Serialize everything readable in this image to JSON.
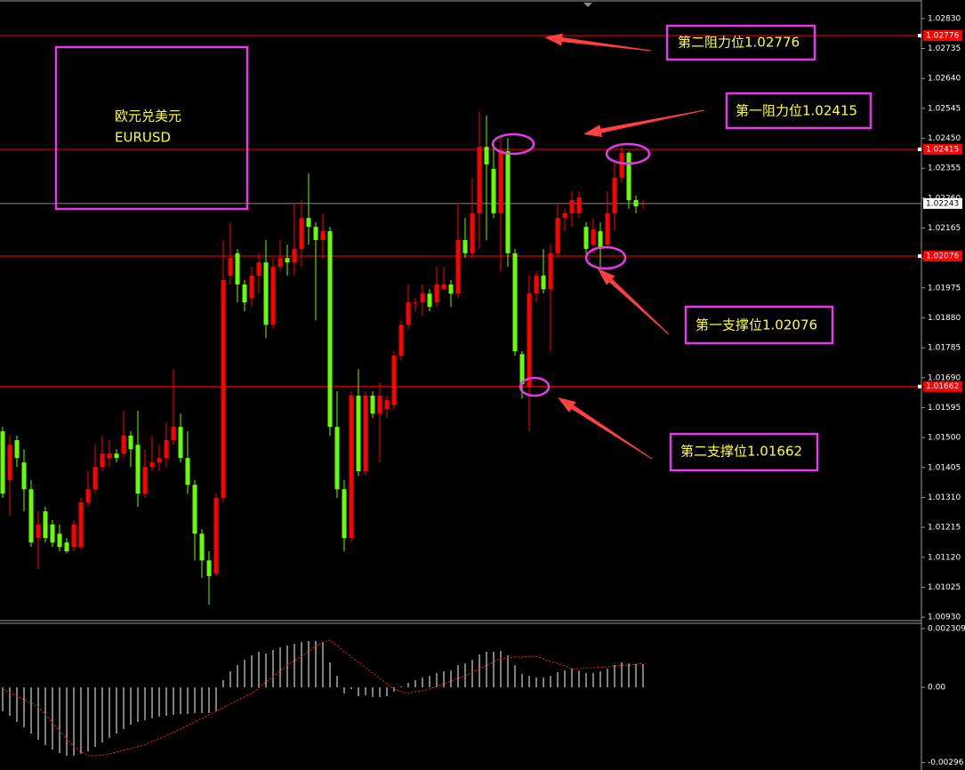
{
  "chart_data": [
    {
      "type": "candlestick",
      "up_color": "#ff0000",
      "down_color": "#66ff00",
      "ylim": [
        1.00919,
        1.02889
      ],
      "yticks": [
        {
          "value": 1.0283,
          "label": "1.02830"
        },
        1.02735,
        {
          "value": 1.0264,
          "label": "1.02640"
        },
        1.02545,
        {
          "value": 1.0245,
          "label": "1.02450"
        },
        1.02355,
        {
          "value": 1.0226,
          "label": "1.02260"
        },
        1.02165,
        {
          "value": 1.0207,
          "label": "1.02070"
        },
        1.01975,
        {
          "value": 1.0188,
          "label": "1.01880"
        },
        1.01785,
        {
          "value": 1.0169,
          "label": "1.01690"
        },
        1.01595,
        {
          "value": 1.015,
          "label": "1.01500"
        },
        1.01405,
        {
          "value": 1.0131,
          "label": "1.01310"
        },
        1.01215,
        {
          "value": 1.0112,
          "label": "1.01120"
        },
        1.01025,
        {
          "value": 1.0093,
          "label": "1.00930"
        }
      ],
      "hlines": [
        1.02776,
        1.02415,
        1.02076,
        1.01662
      ],
      "hline_color": "#ff0000",
      "current_price": 1.02243,
      "open": [
        1.0152,
        1.01365,
        1.01492,
        1.01421,
        1.01336,
        1.01181,
        1.01266,
        1.01224,
        1.01195,
        1.01167,
        1.01153,
        1.01153,
        1.01294,
        1.01336,
        1.01407,
        1.01435,
        1.01449,
        1.01449,
        1.01506,
        1.01477,
        1.01322,
        1.01407,
        1.01421,
        1.01435,
        1.01492,
        1.01534,
        1.01435,
        1.0135,
        1.01195,
        1.0111,
        1.01068,
        1.01308,
        1.02014,
        1.02085,
        1.01986,
        1.01943,
        1.02014,
        1.02056,
        1.01858,
        1.02042,
        1.0207,
        1.02056,
        1.02099,
        1.02197,
        1.02169,
        1.02127,
        1.02155,
        1.01534,
        1.01336,
        1.01181,
        1.01633,
        1.01393,
        1.01633,
        1.01576,
        1.0159,
        1.01604,
        1.0176,
        1.01858,
        1.01929,
        1.01929,
        1.01957,
        1.01929,
        1.01971,
        1.01986,
        1.01957,
        1.02127,
        1.02085,
        1.02212,
        1.02423,
        1.02353,
        1.02212,
        1.02409,
        1.02085,
        1.01765,
        1.01661,
        1.01957,
        1.02014,
        1.01971,
        1.02085,
        1.02197,
        1.02212,
        1.02212,
        1.02169,
        1.02113,
        1.02155,
        1.02113,
        1.02212,
        1.02325,
        1.02404,
        1.02254,
        1.02243
      ],
      "high": [
        1.01534,
        1.01506,
        1.01506,
        1.01463,
        1.01365,
        1.01266,
        1.0128,
        1.01238,
        1.01224,
        1.01181,
        1.01238,
        1.01308,
        1.01393,
        1.01477,
        1.01506,
        1.01492,
        1.01463,
        1.01585,
        1.0152,
        1.01585,
        1.01463,
        1.01506,
        1.01477,
        1.01548,
        1.01717,
        1.01576,
        1.0152,
        1.01365,
        1.01209,
        1.01139,
        1.01322,
        1.02127,
        1.02183,
        1.02099,
        1.02,
        1.02042,
        1.02085,
        1.02127,
        1.0207,
        1.02127,
        1.02113,
        1.0224,
        1.02254,
        1.02339,
        1.02183,
        1.02212,
        1.02169,
        1.01647,
        1.01365,
        1.01647,
        1.01717,
        1.01647,
        1.01647,
        1.01675,
        1.01633,
        1.01774,
        1.01872,
        1.01986,
        1.01943,
        1.01986,
        1.01971,
        1.02042,
        1.02042,
        1.02,
        1.0224,
        1.02197,
        1.02325,
        1.02536,
        1.02522,
        1.02437,
        1.02451,
        1.02451,
        1.02099,
        1.01774,
        1.02014,
        1.02028,
        1.02099,
        1.02113,
        1.0224,
        1.02226,
        1.02282,
        1.02282,
        1.02183,
        1.02197,
        1.02183,
        1.02282,
        1.02381,
        1.02423,
        1.02409,
        1.02268,
        1.02254
      ],
      "low": [
        1.01308,
        1.01252,
        1.01407,
        1.01266,
        1.01153,
        1.01082,
        1.01167,
        1.01153,
        1.01139,
        1.01133,
        1.01139,
        1.01144,
        1.0128,
        1.01322,
        1.01393,
        1.01407,
        1.01421,
        1.01435,
        1.01407,
        1.0128,
        1.01308,
        1.01393,
        1.01393,
        1.01407,
        1.01477,
        1.01421,
        1.01322,
        1.0111,
        1.01055,
        1.00969,
        1.0106,
        1.01294,
        1.01986,
        1.01929,
        1.01901,
        1.01915,
        1.01957,
        1.01816,
        1.01844,
        1.02028,
        1.02014,
        1.02014,
        1.02042,
        1.02113,
        1.01872,
        1.0207,
        1.01506,
        1.01308,
        1.01139,
        1.01167,
        1.01379,
        1.01379,
        1.01562,
        1.01421,
        1.01562,
        1.0159,
        1.01746,
        1.01844,
        1.01901,
        1.01887,
        1.01901,
        1.01915,
        1.01971,
        1.01915,
        1.01943,
        1.0207,
        1.0207,
        1.02099,
        1.02127,
        1.02197,
        1.02028,
        1.02042,
        1.0176,
        1.01624,
        1.0152,
        1.01929,
        1.01957,
        1.01774,
        1.0207,
        1.02155,
        1.02169,
        1.02197,
        1.02085,
        1.02085,
        1.02042,
        1.02099,
        1.02155,
        1.0231,
        1.02226,
        1.02212,
        1.02226
      ],
      "close": [
        1.01322,
        1.01477,
        1.01435,
        1.01336,
        1.01167,
        1.01224,
        1.01181,
        1.01167,
        1.01153,
        1.01139,
        1.01224,
        1.01294,
        1.01336,
        1.01407,
        1.01449,
        1.01449,
        1.01435,
        1.01506,
        1.01463,
        1.01322,
        1.01407,
        1.01421,
        1.01435,
        1.01492,
        1.01534,
        1.01435,
        1.0135,
        1.01195,
        1.0111,
        1.0106,
        1.01308,
        1.02,
        1.0207,
        1.01986,
        1.01929,
        1.02014,
        1.02056,
        1.01858,
        1.02042,
        1.0207,
        1.02056,
        1.02099,
        1.02197,
        1.02169,
        1.02127,
        1.02155,
        1.01534,
        1.01336,
        1.01181,
        1.01633,
        1.01393,
        1.01633,
        1.01576,
        1.01633,
        1.01619,
        1.0176,
        1.01858,
        1.01929,
        1.01929,
        1.01957,
        1.01915,
        1.01986,
        1.01986,
        1.01957,
        1.02127,
        1.02085,
        1.02212,
        1.02423,
        1.02367,
        1.02212,
        1.02409,
        1.02085,
        1.01774,
        1.01669,
        1.01957,
        1.02014,
        1.01971,
        1.02085,
        1.02197,
        1.02212,
        1.02254,
        1.02262,
        1.02099,
        1.02161,
        1.02099,
        1.02212,
        1.02325,
        1.02404,
        1.02254,
        1.02234,
        1.02243
      ],
      "annotations": [
        "欧元兑美元",
        "EURUSD",
        "第二阻力位1.02776",
        "第一阻力位1.02415",
        "第一支撑位1.02076",
        "第二支撑位1.01662"
      ]
    },
    {
      "type": "macd",
      "ylim": [
        -0.003254,
        0.002554
      ],
      "yticks": [
        0.002309,
        {
          "value": 0,
          "label": "0.00"
        },
        -0.00296
      ],
      "histogram": {
        "color": "#ffffff",
        "values": [
          -0.00094,
          -0.00112,
          -0.00136,
          -0.00157,
          -0.00182,
          -0.00206,
          -0.00227,
          -0.00245,
          -0.00259,
          -0.00269,
          -0.00269,
          -0.00262,
          -0.00252,
          -0.00234,
          -0.00217,
          -0.00199,
          -0.00182,
          -0.00164,
          -0.00147,
          -0.00136,
          -0.00129,
          -0.00122,
          -0.00115,
          -0.00112,
          -0.00108,
          -0.00105,
          -0.00105,
          -0.00101,
          -0.00101,
          -0.00101,
          -0.00094,
          0.00028,
          0.00063,
          0.00087,
          0.00108,
          0.00126,
          0.0014,
          0.00133,
          0.00147,
          0.00157,
          0.00164,
          0.00171,
          0.00178,
          0.00182,
          0.00182,
          0.00178,
          0.00098,
          0.00045,
          -0.00024,
          -7e-05,
          -0.00035,
          -0.00031,
          -0.00038,
          -0.00038,
          -0.00035,
          -0.00017,
          3e-05,
          0.00017,
          0.00028,
          0.00038,
          0.00045,
          0.00056,
          0.00063,
          0.00066,
          0.00087,
          0.00094,
          0.00108,
          0.00129,
          0.0014,
          0.0014,
          0.00143,
          0.00126,
          0.00087,
          0.00052,
          0.00045,
          0.00038,
          0.00038,
          0.00045,
          0.00059,
          0.00066,
          0.00073,
          0.00066,
          0.00056,
          0.00056,
          0.00063,
          0.00073,
          0.00087,
          0.00098,
          0.00094,
          0.00091,
          0.00091
        ]
      },
      "signal": {
        "color": "#ff2020",
        "values": [
          -7e-05,
          -0.00021,
          -0.00035,
          -0.00049,
          -0.00063,
          -0.00077,
          -0.00108,
          -0.0014,
          -0.00171,
          -0.00203,
          -0.00234,
          -0.00252,
          -0.00269,
          -0.00269,
          -0.00266,
          -0.00262,
          -0.00255,
          -0.00248,
          -0.00241,
          -0.00234,
          -0.00227,
          -0.00213,
          -0.00203,
          -0.00189,
          -0.00178,
          -0.00164,
          -0.0015,
          -0.00136,
          -0.00122,
          -0.00108,
          -0.00094,
          -0.0008,
          -0.00066,
          -0.00052,
          -0.00038,
          -0.00024,
          -3e-05,
          0.00021,
          0.00042,
          0.00066,
          0.00087,
          0.00105,
          0.00122,
          0.00143,
          0.00161,
          0.00178,
          0.00185,
          0.00164,
          0.0014,
          0.00119,
          0.00098,
          0.00077,
          0.00056,
          0.00035,
          0.00014,
          -7e-05,
          -0.00017,
          -0.00024,
          -0.00017,
          -0.00014,
          -7e-05,
          3e-05,
          0.00014,
          0.00024,
          0.00035,
          0.00045,
          0.00059,
          0.00073,
          0.00087,
          0.00101,
          0.00115,
          0.00115,
          0.00119,
          0.00119,
          0.00122,
          0.00122,
          0.00112,
          0.00101,
          0.00094,
          0.00084,
          0.00073,
          0.00073,
          0.00077,
          0.00077,
          0.0008,
          0.0008,
          0.00084,
          0.00087,
          0.00087,
          0.00091,
          0.00094
        ]
      }
    }
  ]
}
